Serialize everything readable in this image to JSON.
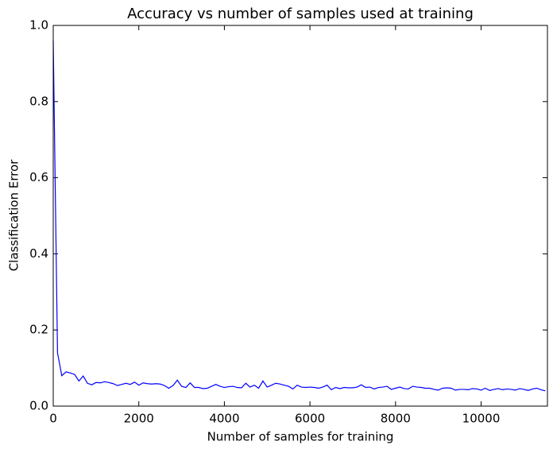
{
  "chart_data": {
    "type": "line",
    "title": "Accuracy vs number of samples used at training",
    "x_label": "Number of samples for training",
    "y_label": "Classification Error",
    "x": [
      0,
      100,
      200,
      300,
      400,
      500,
      600,
      700,
      800,
      900,
      1000,
      1100,
      1200,
      1300,
      1400,
      1500,
      1600,
      1700,
      1800,
      1900,
      2000,
      2100,
      2200,
      2300,
      2400,
      2500,
      2600,
      2700,
      2800,
      2900,
      3000,
      3100,
      3200,
      3300,
      3400,
      3500,
      3600,
      3700,
      3800,
      3900,
      4000,
      4100,
      4200,
      4300,
      4400,
      4500,
      4600,
      4700,
      4800,
      4900,
      5000,
      5100,
      5200,
      5300,
      5400,
      5500,
      5600,
      5700,
      5800,
      5900,
      6000,
      6100,
      6200,
      6300,
      6400,
      6500,
      6600,
      6700,
      6800,
      6900,
      7000,
      7100,
      7200,
      7300,
      7400,
      7500,
      7600,
      7700,
      7800,
      7900,
      8000,
      8100,
      8200,
      8300,
      8400,
      8500,
      8600,
      8700,
      8800,
      8900,
      9000,
      9100,
      9200,
      9300,
      9400,
      9500,
      9600,
      9700,
      9800,
      9900,
      10000,
      10100,
      10200,
      10300,
      10400,
      10500,
      10600,
      10700,
      10800,
      10900,
      11000,
      11100,
      11200,
      11300,
      11400,
      11500
    ],
    "values": [
      0.96,
      0.14,
      0.08,
      0.09,
      0.087,
      0.083,
      0.066,
      0.079,
      0.06,
      0.056,
      0.062,
      0.061,
      0.064,
      0.062,
      0.059,
      0.054,
      0.057,
      0.06,
      0.057,
      0.063,
      0.055,
      0.061,
      0.059,
      0.058,
      0.059,
      0.058,
      0.054,
      0.047,
      0.054,
      0.068,
      0.052,
      0.049,
      0.061,
      0.049,
      0.049,
      0.046,
      0.047,
      0.052,
      0.057,
      0.052,
      0.049,
      0.051,
      0.052,
      0.049,
      0.048,
      0.06,
      0.05,
      0.055,
      0.047,
      0.066,
      0.05,
      0.055,
      0.06,
      0.058,
      0.055,
      0.052,
      0.045,
      0.055,
      0.05,
      0.049,
      0.05,
      0.049,
      0.047,
      0.05,
      0.055,
      0.043,
      0.049,
      0.046,
      0.049,
      0.048,
      0.048,
      0.05,
      0.056,
      0.049,
      0.05,
      0.045,
      0.049,
      0.05,
      0.052,
      0.044,
      0.047,
      0.05,
      0.046,
      0.045,
      0.052,
      0.05,
      0.049,
      0.047,
      0.047,
      0.044,
      0.042,
      0.047,
      0.048,
      0.047,
      0.042,
      0.044,
      0.044,
      0.043,
      0.046,
      0.045,
      0.042,
      0.047,
      0.041,
      0.044,
      0.046,
      0.043,
      0.045,
      0.044,
      0.042,
      0.046,
      0.044,
      0.041,
      0.045,
      0.047,
      0.043,
      0.04
    ],
    "color": "#0000ff",
    "xlim": [
      0,
      11550
    ],
    "ylim": [
      0,
      1
    ],
    "xticks": [
      0,
      2000,
      4000,
      6000,
      8000,
      10000
    ],
    "yticks": [
      {
        "value": 0,
        "label": "0.0"
      },
      0.2,
      0.4,
      0.6,
      0.8,
      {
        "value": 1,
        "label": "1.0"
      }
    ]
  }
}
